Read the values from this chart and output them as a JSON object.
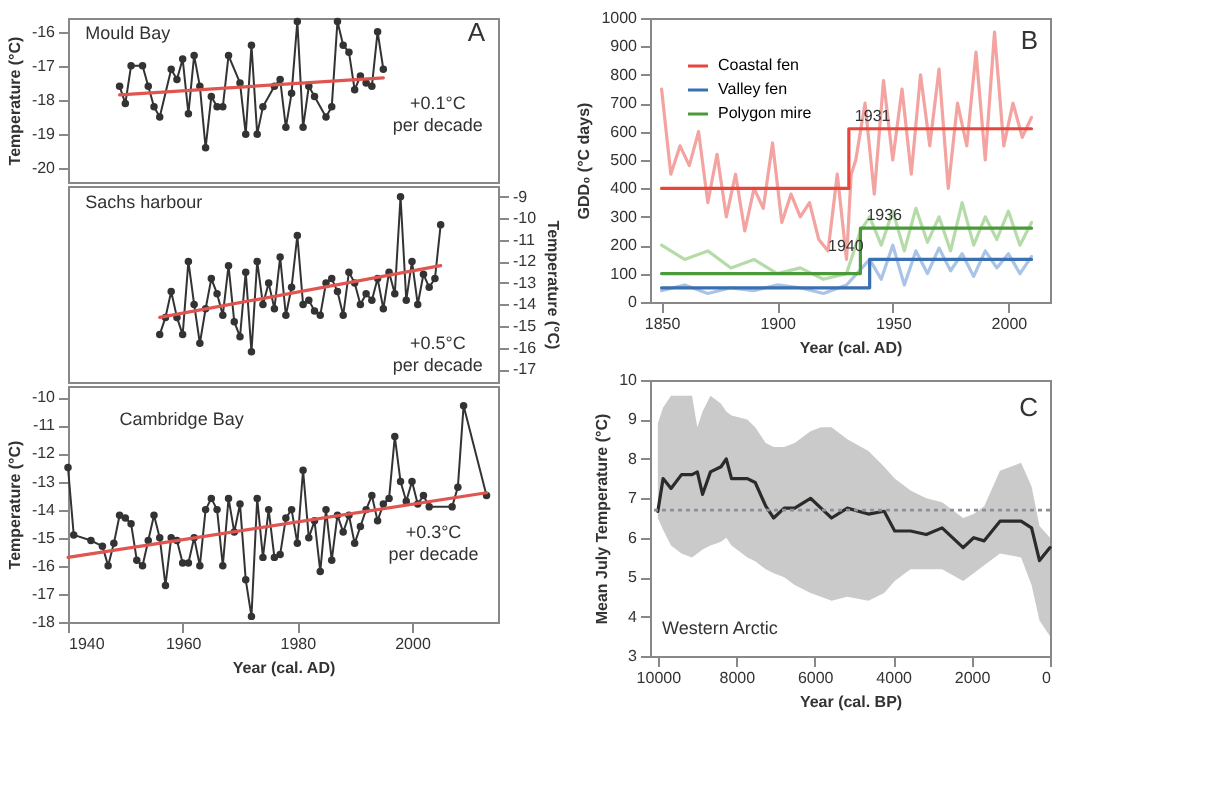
{
  "chart_data": [
    {
      "type": "line",
      "xlim": [
        1940,
        2015
      ],
      "xticks": [
        1940,
        1960,
        1980,
        2000
      ],
      "ylim": [
        -20.4,
        -15.6
      ],
      "yticks": [
        -16,
        -17,
        -18,
        -19,
        -20
      ],
      "ylabel": "Temperature (°C)",
      "tick_labels": "y",
      "marker": "circle",
      "grid": false,
      "legend": false,
      "annotations": [
        "Mould Bay",
        "A",
        "+0.1°C per decade"
      ],
      "series": [
        {
          "color": "#333333",
          "x": [
            1949,
            1950,
            1951,
            1953,
            1954,
            1955,
            1956,
            1958,
            1959,
            1960,
            1961,
            1962,
            1963,
            1964,
            1965,
            1966,
            1967,
            1968,
            1970,
            1971,
            1972,
            1973,
            1974,
            1976,
            1977,
            1978,
            1979,
            1980,
            1981,
            1982,
            1983,
            1985,
            1986,
            1987,
            1988,
            1989,
            1990,
            1991,
            1992,
            1993,
            1994,
            1995
          ],
          "values": [
            -17.6,
            -18.1,
            -17.0,
            -17.0,
            -17.6,
            -18.2,
            -18.5,
            -17.1,
            -17.4,
            -16.8,
            -18.4,
            -16.7,
            -17.6,
            -19.4,
            -17.9,
            -18.2,
            -18.2,
            -16.7,
            -17.5,
            -19.0,
            -16.4,
            -19.0,
            -18.2,
            -17.6,
            -17.4,
            -18.8,
            -17.8,
            -15.7,
            -18.8,
            -17.6,
            -17.9,
            -18.5,
            -18.2,
            -15.7,
            -16.4,
            -16.6,
            -17.7,
            -17.3,
            -17.5,
            -17.6,
            -16.0,
            -17.1
          ]
        },
        {
          "type": "line",
          "marker": "none",
          "color": "#e0554f",
          "x": [
            1949,
            1995
          ],
          "values": [
            -17.85,
            -17.35
          ]
        }
      ]
    },
    {
      "type": "line",
      "xlim": [
        1940,
        2015
      ],
      "xticks": [
        1940,
        1960,
        1980,
        2000
      ],
      "y2lim": [
        -17.6,
        -8.5
      ],
      "y2ticks": [
        -9,
        -10,
        -11,
        -12,
        -13,
        -14,
        -15,
        -16,
        -17
      ],
      "y2label": "Temperature (°C)",
      "tick_labels": "y",
      "marker": "circle",
      "grid": false,
      "legend": false,
      "annotations": [
        "Sachs harbour",
        "+0.5°C per decade"
      ],
      "series": [
        {
          "axis": "y2",
          "color": "#333333",
          "x": [
            1956,
            1957,
            1958,
            1959,
            1960,
            1961,
            1962,
            1963,
            1964,
            1965,
            1966,
            1967,
            1968,
            1969,
            1970,
            1971,
            1972,
            1973,
            1974,
            1975,
            1976,
            1977,
            1978,
            1979,
            1980,
            1981,
            1982,
            1983,
            1984,
            1985,
            1986,
            1987,
            1988,
            1989,
            1990,
            1991,
            1992,
            1993,
            1994,
            1995,
            1996,
            1997,
            1998,
            1999,
            2000,
            2001,
            2002,
            2003,
            2004,
            2005
          ],
          "values": [
            -15.4,
            -14.6,
            -13.4,
            -14.6,
            -15.4,
            -12.0,
            -14.0,
            -15.8,
            -14.2,
            -12.8,
            -13.5,
            -14.5,
            -12.2,
            -14.8,
            -15.5,
            -12.5,
            -16.2,
            -12.0,
            -14.0,
            -13.0,
            -14.2,
            -11.8,
            -14.5,
            -13.2,
            -10.8,
            -14.0,
            -13.8,
            -14.3,
            -14.5,
            -13.0,
            -12.8,
            -13.4,
            -14.5,
            -12.5,
            -13.0,
            -14.0,
            -13.5,
            -13.8,
            -12.8,
            -14.2,
            -12.5,
            -13.5,
            -9.0,
            -13.8,
            -12.0,
            -14.0,
            -12.6,
            -13.2,
            -12.8,
            -10.3
          ]
        },
        {
          "axis": "y2",
          "type": "line",
          "marker": "none",
          "color": "#e0554f",
          "x": [
            1956,
            2005
          ],
          "values": [
            -14.6,
            -12.2
          ]
        }
      ]
    },
    {
      "type": "line",
      "xlim": [
        1940,
        2015
      ],
      "xticks": [
        1940,
        1960,
        1980,
        2000
      ],
      "ylim": [
        -18,
        -9.6
      ],
      "yticks": [
        -10,
        -11,
        -12,
        -13,
        -14,
        -15,
        -16,
        -17,
        -18
      ],
      "ylabel": "Temperature (°C)",
      "xlabel": "Year (cal. AD)",
      "marker": "circle",
      "grid": false,
      "legend": false,
      "annotations": [
        "Cambridge Bay",
        "+0.3°C per decade"
      ],
      "series": [
        {
          "color": "#333333",
          "x": [
            1940,
            1941,
            1944,
            1946,
            1947,
            1948,
            1949,
            1950,
            1951,
            1952,
            1953,
            1954,
            1955,
            1956,
            1957,
            1958,
            1959,
            1960,
            1961,
            1962,
            1963,
            1964,
            1965,
            1966,
            1967,
            1968,
            1969,
            1970,
            1971,
            1972,
            1973,
            1974,
            1975,
            1976,
            1977,
            1978,
            1979,
            1980,
            1981,
            1982,
            1983,
            1984,
            1985,
            1986,
            1987,
            1988,
            1989,
            1990,
            1991,
            1992,
            1993,
            1994,
            1995,
            1996,
            1997,
            1998,
            1999,
            2000,
            2001,
            2002,
            2003,
            2007,
            2008,
            2009,
            2013
          ],
          "values": [
            -12.5,
            -14.9,
            -15.1,
            -15.3,
            -16.0,
            -15.2,
            -14.2,
            -14.3,
            -14.5,
            -15.8,
            -16.0,
            -15.1,
            -14.2,
            -15.0,
            -16.7,
            -15.0,
            -15.1,
            -15.9,
            -15.9,
            -15.0,
            -16.0,
            -14.0,
            -13.6,
            -14.0,
            -16.0,
            -13.6,
            -14.8,
            -13.8,
            -16.5,
            -17.8,
            -13.6,
            -15.7,
            -14.0,
            -15.7,
            -15.6,
            -14.3,
            -14.0,
            -15.2,
            -12.6,
            -15.0,
            -14.4,
            -16.2,
            -14.0,
            -15.8,
            -14.2,
            -14.8,
            -14.2,
            -15.2,
            -14.6,
            -14.0,
            -13.5,
            -14.4,
            -13.8,
            -13.6,
            -11.4,
            -13.0,
            -13.7,
            -13.0,
            -13.8,
            -13.5,
            -13.9,
            -13.9,
            -13.2,
            -10.3,
            -13.5
          ]
        },
        {
          "type": "line",
          "marker": "none",
          "color": "#e0554f",
          "x": [
            1940,
            2013
          ],
          "values": [
            -15.7,
            -13.4
          ]
        }
      ]
    },
    {
      "type": "line",
      "xlim": [
        1845,
        2018
      ],
      "xticks": [
        1850,
        1900,
        1950,
        2000
      ],
      "ylim": [
        0,
        1000
      ],
      "yticks": [
        0,
        100,
        200,
        300,
        400,
        500,
        600,
        700,
        800,
        900,
        1000
      ],
      "ylabel": "GDD₀ (°C days)",
      "xlabel": "Year (cal. AD)",
      "grid": false,
      "legend": "top left",
      "annotations": [
        "B",
        {
          "text": "1931",
          "x": 1931,
          "y": 610
        },
        {
          "text": "1936",
          "x": 1936,
          "y": 260
        },
        {
          "text": "1940",
          "x": 1940,
          "y": 150
        }
      ],
      "series": [
        {
          "color": "#f3a3a0",
          "x": [
            1850,
            1854,
            1858,
            1862,
            1866,
            1870,
            1874,
            1878,
            1882,
            1886,
            1890,
            1894,
            1898,
            1902,
            1906,
            1910,
            1914,
            1918,
            1922,
            1926,
            1930,
            1932,
            1934,
            1938,
            1942,
            1946,
            1950,
            1954,
            1958,
            1962,
            1966,
            1970,
            1974,
            1978,
            1982,
            1986,
            1990,
            1994,
            1998,
            2002,
            2006,
            2010
          ],
          "values": [
            750,
            450,
            550,
            480,
            600,
            350,
            520,
            300,
            450,
            250,
            400,
            330,
            560,
            280,
            380,
            300,
            350,
            220,
            180,
            450,
            150,
            450,
            500,
            700,
            380,
            780,
            500,
            750,
            450,
            800,
            550,
            820,
            400,
            700,
            550,
            880,
            500,
            950,
            550,
            700,
            580,
            650
          ]
        },
        {
          "color": "#b5dca8",
          "x": [
            1850,
            1860,
            1870,
            1880,
            1890,
            1900,
            1910,
            1920,
            1930,
            1936,
            1940,
            1945,
            1950,
            1955,
            1960,
            1965,
            1970,
            1975,
            1980,
            1985,
            1990,
            1995,
            2000,
            2005,
            2010
          ],
          "values": [
            200,
            150,
            180,
            120,
            150,
            100,
            120,
            80,
            100,
            250,
            300,
            200,
            320,
            180,
            330,
            210,
            300,
            180,
            350,
            200,
            300,
            220,
            320,
            200,
            280
          ]
        },
        {
          "color": "#a9c4e6",
          "x": [
            1850,
            1860,
            1870,
            1880,
            1890,
            1900,
            1910,
            1920,
            1930,
            1940,
            1945,
            1950,
            1955,
            1960,
            1965,
            1970,
            1975,
            1980,
            1985,
            1990,
            1995,
            2000,
            2005,
            2010
          ],
          "values": [
            40,
            60,
            30,
            50,
            40,
            60,
            50,
            30,
            60,
            150,
            80,
            200,
            60,
            180,
            100,
            190,
            110,
            170,
            90,
            180,
            120,
            170,
            100,
            160
          ]
        },
        {
          "name": "Coastal fen",
          "type": "step",
          "color": "#e8453c",
          "x": [
            1850,
            1931,
            2010
          ],
          "values": [
            400,
            610,
            610
          ]
        },
        {
          "name": "Valley fen",
          "type": "step",
          "color": "#3a6fb0",
          "x": [
            1850,
            1940,
            2010
          ],
          "values": [
            50,
            150,
            150
          ]
        },
        {
          "name": "Polygon mire",
          "type": "step",
          "color": "#4a9a3a",
          "x": [
            1850,
            1936,
            2010
          ],
          "values": [
            100,
            260,
            260
          ]
        }
      ]
    },
    {
      "type": "line",
      "xlim": [
        10200,
        0
      ],
      "xticks": [
        10000,
        8000,
        6000,
        4000,
        2000,
        0
      ],
      "ylim": [
        3,
        10
      ],
      "yticks": [
        3,
        4,
        5,
        6,
        7,
        8,
        9,
        10
      ],
      "ylabel": "Mean July Temperature (°C)",
      "xlabel": "Year (cal. BP)",
      "grid": false,
      "legend": false,
      "annotations": [
        "C",
        "Western Arctic"
      ],
      "ref_lines": [
        {
          "axis": "y",
          "value": 6.7,
          "color": "#8a9099",
          "line_style": "dotted"
        }
      ],
      "series": [
        {
          "color": "#2b2b2b",
          "x": [
            10000,
            9866,
            9664,
            9396,
            9128,
            8993,
            8859,
            8658,
            8389,
            8255,
            8121,
            7718,
            7517,
            7248,
            7047,
            6779,
            6510,
            6107,
            5839,
            5570,
            5168,
            4631,
            4228,
            3960,
            3557,
            3154,
            2752,
            2215,
            1946,
            1678,
            1275,
            738,
            470,
            268,
            0
          ],
          "values": [
            6.67,
            7.5,
            7.25,
            7.6,
            7.6,
            7.67,
            7.1,
            7.67,
            7.8,
            8.0,
            7.5,
            7.5,
            7.4,
            6.8,
            6.5,
            6.75,
            6.75,
            7.0,
            6.75,
            6.5,
            6.75,
            6.6,
            6.67,
            6.17,
            6.17,
            6.08,
            6.25,
            5.75,
            6.0,
            5.92,
            6.42,
            6.42,
            6.25,
            5.42,
            5.75
          ],
          "upper": [
            8.9,
            9.3,
            9.6,
            9.6,
            9.6,
            8.8,
            9.2,
            9.6,
            9.4,
            9.2,
            9.1,
            9.0,
            8.8,
            8.4,
            8.3,
            8.3,
            8.4,
            8.7,
            8.8,
            8.8,
            8.5,
            8.2,
            7.8,
            7.5,
            7.2,
            7.0,
            6.9,
            6.5,
            6.6,
            6.8,
            7.7,
            7.9,
            7.3,
            6.3,
            6.0
          ],
          "lower": [
            6.5,
            6.2,
            5.8,
            5.6,
            5.5,
            5.6,
            5.7,
            5.8,
            5.9,
            6.0,
            5.8,
            5.5,
            5.4,
            5.2,
            5.1,
            5.0,
            4.8,
            4.6,
            4.5,
            4.4,
            4.5,
            4.4,
            4.6,
            4.9,
            5.2,
            5.2,
            5.2,
            4.9,
            5.1,
            5.3,
            5.6,
            5.5,
            4.8,
            3.9,
            3.5
          ]
        }
      ]
    }
  ]
}
